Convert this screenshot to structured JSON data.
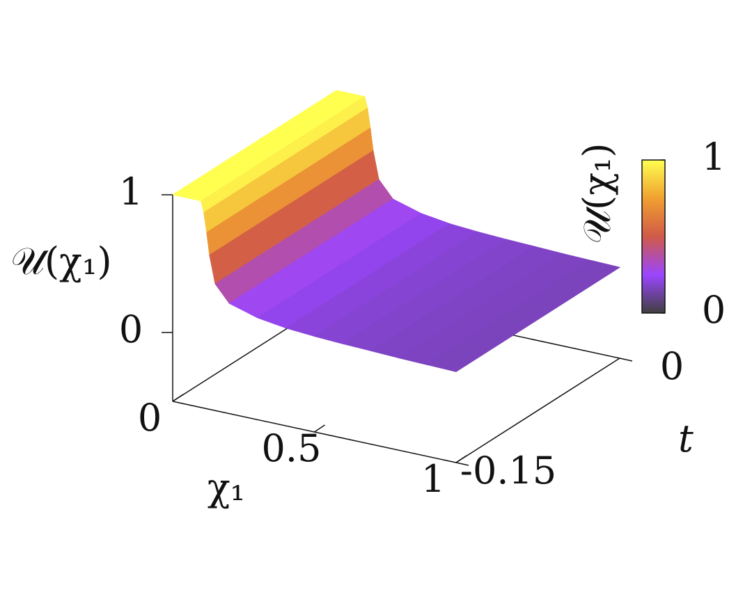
{
  "chart_data": {
    "type": "surface",
    "zlabel": "𝒰(χ₁)",
    "xlabel": "χ₁",
    "ylabel": "t",
    "x": [
      0,
      0.05,
      0.1,
      0.11,
      0.12,
      0.13,
      0.15,
      0.2,
      0.3,
      0.4,
      0.5,
      0.6,
      0.7,
      0.8,
      0.9,
      1
    ],
    "values": [
      1,
      1,
      1,
      0.92,
      0.78,
      0.62,
      0.42,
      0.3,
      0.24,
      0.21,
      0.195,
      0.185,
      0.178,
      0.17,
      0.165,
      0.16
    ],
    "xlim": [
      0,
      1
    ],
    "xticks": [
      0,
      0.5,
      1
    ],
    "ylim": [
      -0.15,
      0
    ],
    "yticks": [
      -0.15,
      0
    ],
    "zlim": [
      -0.5,
      1
    ],
    "zticks": [
      0,
      1
    ],
    "colorbar_label": "𝒰(χ₁)",
    "clim": [
      0,
      1
    ],
    "cticks": [
      0,
      1
    ],
    "colormap": [
      "#404040",
      "#9b45ff",
      "#d05a48",
      "#f0a030",
      "#ffff50"
    ]
  }
}
